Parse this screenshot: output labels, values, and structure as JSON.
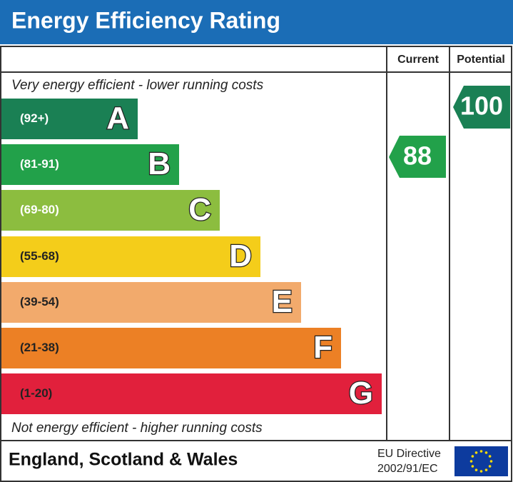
{
  "header": {
    "title": "Energy Efficiency Rating"
  },
  "columns": {
    "current": "Current",
    "potential": "Potential"
  },
  "top_note": "Very energy efficient - lower running costs",
  "bands": [
    {
      "range": "(92+)",
      "letter": "A"
    },
    {
      "range": "(81-91)",
      "letter": "B"
    },
    {
      "range": "(69-80)",
      "letter": "C"
    },
    {
      "range": "(55-68)",
      "letter": "D"
    },
    {
      "range": "(39-54)",
      "letter": "E"
    },
    {
      "range": "(21-38)",
      "letter": "F"
    },
    {
      "range": "(1-20)",
      "letter": "G"
    }
  ],
  "bottom_note": "Not energy efficient - higher running costs",
  "ratings": {
    "current": "88",
    "potential": "100"
  },
  "footer": {
    "region": "England, Scotland & Wales",
    "directive": [
      "EU Directive",
      "2002/91/EC"
    ]
  }
}
